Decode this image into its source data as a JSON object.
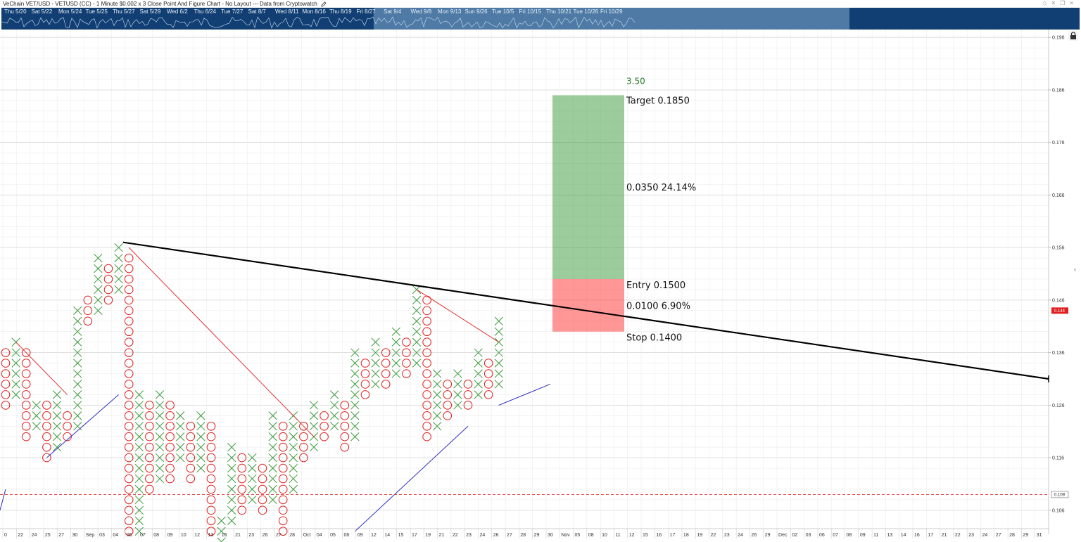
{
  "title_bar": {
    "title": "VeChain VET/USD - VETUSD (CC) - 1 Minute $0.002 x 3 Close Point And Figure Chart - No Layout --- Data from Cryptowatch"
  },
  "navigator": {
    "labels": [
      "Thu 5/20",
      "Sat 5/22",
      "Mon 5/24",
      "Tue 5/25",
      "Thu 5/27",
      "Sat 5/29",
      "Wed 6/2",
      "Thu 6/24",
      "Tue 7/27",
      "Sat 8/7",
      "Wed 8/11",
      "Mon 8/16",
      "Thu 8/19",
      "Fri 8/27",
      "Sat 9/4",
      "Wed 9/8",
      "Mon 9/13",
      "Sun 9/26",
      "Tue 10/5",
      "Fri 10/15",
      "Thu 10/21",
      "Tue 10/26",
      "Fri 10/29"
    ]
  },
  "chart_data": {
    "type": "point-and-figure",
    "title": "VeChain VET/USD - VETUSD (CC) - 1 Minute $0.002 x 3 Close Point And Figure Chart",
    "box_size": 0.002,
    "reversal": 3,
    "ylim": [
      0.1025,
      0.1975
    ],
    "y_ticks": [
      "0.196",
      "0.186",
      "0.176",
      "0.166",
      "0.156",
      "0.146",
      "0.136",
      "0.126",
      "0.116",
      "0.106"
    ],
    "x_labels": [
      "0",
      "22",
      "24",
      "25",
      "27",
      "30",
      "Sep",
      "03",
      "04",
      "06",
      "07",
      "08",
      "09",
      "10",
      "12",
      "13",
      "15",
      "21",
      "23",
      "26",
      "27",
      "28",
      "Oct",
      "04",
      "05",
      "06",
      "09",
      "12",
      "14",
      "15",
      "17",
      "19",
      "21",
      "22",
      "23",
      "24",
      "26",
      "27",
      "28",
      "29",
      "30",
      "Nov",
      "05",
      "08",
      "10",
      "11",
      "12",
      "15",
      "16",
      "17",
      "18",
      "19",
      "22",
      "23",
      "24",
      "26",
      "29",
      "Dec",
      "02",
      "03",
      "06",
      "07",
      "08",
      "09",
      "11",
      "13",
      "14",
      "16",
      "17",
      "21",
      "22",
      "23",
      "24",
      "27",
      "28",
      "29",
      "31"
    ],
    "columns": [
      {
        "t": "O",
        "hi": 0.136,
        "lo": 0.126
      },
      {
        "t": "X",
        "hi": 0.138,
        "lo": 0.128
      },
      {
        "t": "O",
        "hi": 0.136,
        "lo": 0.12
      },
      {
        "t": "X",
        "hi": 0.126,
        "lo": 0.122
      },
      {
        "t": "O",
        "hi": 0.126,
        "lo": 0.116
      },
      {
        "t": "X",
        "hi": 0.128,
        "lo": 0.118
      },
      {
        "t": "O",
        "hi": 0.124,
        "lo": 0.12
      },
      {
        "t": "X",
        "hi": 0.144,
        "lo": 0.122
      },
      {
        "t": "O",
        "hi": 0.146,
        "lo": 0.142
      },
      {
        "t": "X",
        "hi": 0.154,
        "lo": 0.144
      },
      {
        "t": "O",
        "hi": 0.152,
        "lo": 0.146
      },
      {
        "t": "X",
        "hi": 0.156,
        "lo": 0.148
      },
      {
        "t": "O",
        "hi": 0.154,
        "lo": 0.102
      },
      {
        "t": "X",
        "hi": 0.128,
        "lo": 0.102
      },
      {
        "t": "O",
        "hi": 0.126,
        "lo": 0.11
      },
      {
        "t": "X",
        "hi": 0.128,
        "lo": 0.112
      },
      {
        "t": "O",
        "hi": 0.126,
        "lo": 0.112
      },
      {
        "t": "X",
        "hi": 0.124,
        "lo": 0.116
      },
      {
        "t": "O",
        "hi": 0.122,
        "lo": 0.112
      },
      {
        "t": "X",
        "hi": 0.124,
        "lo": 0.114
      },
      {
        "t": "O",
        "hi": 0.122,
        "lo": 0.102
      },
      {
        "t": "X",
        "hi": 0.104,
        "lo": 0.1
      },
      {
        "t": "X",
        "hi": 0.118,
        "lo": 0.104
      },
      {
        "t": "O",
        "hi": 0.116,
        "lo": 0.106
      },
      {
        "t": "X",
        "hi": 0.116,
        "lo": 0.108
      },
      {
        "t": "O",
        "hi": 0.114,
        "lo": 0.106
      },
      {
        "t": "X",
        "hi": 0.124,
        "lo": 0.108
      },
      {
        "t": "O",
        "hi": 0.122,
        "lo": 0.102
      },
      {
        "t": "X",
        "hi": 0.124,
        "lo": 0.11
      },
      {
        "t": "O",
        "hi": 0.122,
        "lo": 0.116
      },
      {
        "t": "X",
        "hi": 0.126,
        "lo": 0.118
      },
      {
        "t": "O",
        "hi": 0.124,
        "lo": 0.12
      },
      {
        "t": "X",
        "hi": 0.128,
        "lo": 0.122
      },
      {
        "t": "O",
        "hi": 0.126,
        "lo": 0.118
      },
      {
        "t": "X",
        "hi": 0.136,
        "lo": 0.12
      },
      {
        "t": "O",
        "hi": 0.134,
        "lo": 0.128
      },
      {
        "t": "X",
        "hi": 0.138,
        "lo": 0.13
      },
      {
        "t": "O",
        "hi": 0.136,
        "lo": 0.13
      },
      {
        "t": "X",
        "hi": 0.14,
        "lo": 0.132
      },
      {
        "t": "O",
        "hi": 0.138,
        "lo": 0.132
      },
      {
        "t": "X",
        "hi": 0.148,
        "lo": 0.134
      },
      {
        "t": "O",
        "hi": 0.146,
        "lo": 0.12
      },
      {
        "t": "X",
        "hi": 0.132,
        "lo": 0.122
      },
      {
        "t": "O",
        "hi": 0.13,
        "lo": 0.124
      },
      {
        "t": "X",
        "hi": 0.132,
        "lo": 0.126
      },
      {
        "t": "O",
        "hi": 0.13,
        "lo": 0.126
      },
      {
        "t": "X",
        "hi": 0.136,
        "lo": 0.128
      },
      {
        "t": "O",
        "hi": 0.134,
        "lo": 0.128
      },
      {
        "t": "X",
        "hi": 0.142,
        "lo": 0.13
      }
    ],
    "trendline": {
      "start": 0.157,
      "end": 0.131
    },
    "horizontal_level": {
      "value": 0.109,
      "label": "0.109"
    },
    "current_price": {
      "value": 0.144,
      "label": "0.144"
    },
    "position": {
      "ratio_label": "3.50",
      "target_label": "Target  0.1850",
      "target": 0.185,
      "reward_label": "0.0350  24.14%",
      "entry_label": "Entry  0.1500",
      "entry": 0.15,
      "risk_label": "0.0100  6.90%",
      "stop_label": "Stop  0.1400",
      "stop": 0.14
    }
  }
}
